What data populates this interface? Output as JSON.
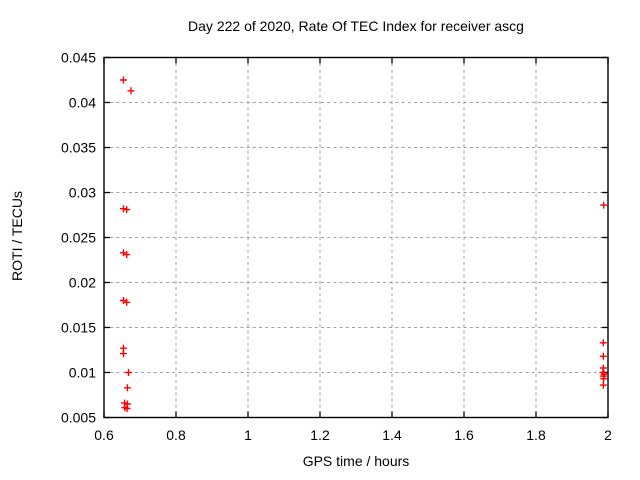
{
  "chart_data": {
    "type": "scatter",
    "title": "Day 222 of 2020, Rate Of TEC Index for receiver ascg",
    "xlabel": "GPS time / hours",
    "ylabel": "ROTI / TECUs",
    "xlim": [
      0.6,
      2.0
    ],
    "ylim": [
      0.005,
      0.045
    ],
    "xticks": [
      0.6,
      0.8,
      1,
      1.2,
      1.4,
      1.6,
      1.8,
      2
    ],
    "xtick_labels": [
      "0.6",
      "0.8",
      "1",
      "1.2",
      "1.4",
      "1.6",
      "1.8",
      "2"
    ],
    "yticks": [
      0.005,
      0.01,
      0.015,
      0.02,
      0.025,
      0.03,
      0.035,
      0.04,
      0.045
    ],
    "ytick_labels": [
      "0.005",
      "0.01",
      "0.015",
      "0.02",
      "0.025",
      "0.03",
      "0.035",
      "0.04",
      "0.045"
    ],
    "grid": true,
    "legend": "none",
    "marker": "plus",
    "colors": {
      "marker": "#ff0000",
      "grid": "#9e9e9e",
      "axis": "#000000",
      "background": "#ffffff",
      "text": "#000000"
    },
    "series": [
      {
        "name": "ROTI",
        "points": [
          [
            0.654,
            0.0425
          ],
          [
            0.675,
            0.0413
          ],
          [
            0.654,
            0.0282
          ],
          [
            0.663,
            0.0281
          ],
          [
            0.654,
            0.0233
          ],
          [
            0.663,
            0.0231
          ],
          [
            0.654,
            0.018
          ],
          [
            0.663,
            0.0178
          ],
          [
            0.654,
            0.0127
          ],
          [
            0.654,
            0.0121
          ],
          [
            0.668,
            0.01
          ],
          [
            0.665,
            0.0083
          ],
          [
            0.657,
            0.0066
          ],
          [
            0.665,
            0.0065
          ],
          [
            0.658,
            0.0061
          ],
          [
            0.664,
            0.006
          ],
          [
            1.988,
            0.0286
          ],
          [
            1.987,
            0.0133
          ],
          [
            1.987,
            0.0118
          ],
          [
            1.987,
            0.0105
          ],
          [
            1.986,
            0.01
          ],
          [
            1.99,
            0.0098
          ],
          [
            1.987,
            0.0096
          ],
          [
            1.988,
            0.0093
          ],
          [
            1.987,
            0.0086
          ]
        ]
      }
    ]
  }
}
